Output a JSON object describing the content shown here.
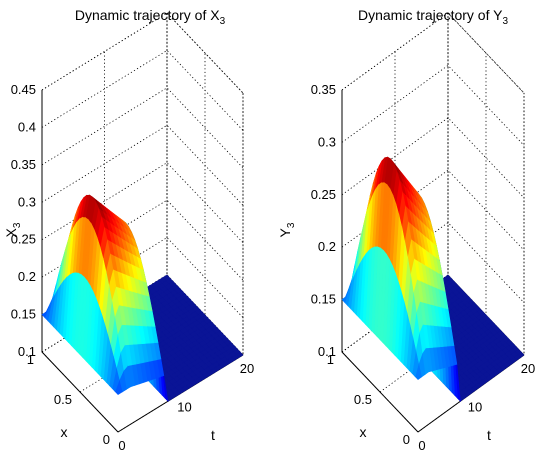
{
  "chart_data": [
    {
      "type": "surface",
      "title": "Dynamic trajectory of X",
      "title_subscript": "3",
      "zlabel": "X",
      "zlabel_subscript": "3",
      "xlabel": "x",
      "tlabel": "t",
      "zticks": [
        "0.1",
        "0.15",
        "0.2",
        "0.25",
        "0.3",
        "0.35",
        "0.4",
        "0.45"
      ],
      "xticks": [
        "0",
        "0.5",
        "1"
      ],
      "tticks": [
        "0",
        "10",
        "20"
      ],
      "zlim": [
        0.1,
        0.45
      ],
      "xlim": [
        0,
        1
      ],
      "tlim": [
        0,
        20
      ],
      "grid": true,
      "colormap": "jet",
      "surface": {
        "z_at_t0_x_boundary": 0.15,
        "z_at_t0_x_mid": 0.15,
        "peak_z": 0.35,
        "peak_t": 2,
        "z_final": 0.1
      }
    },
    {
      "type": "surface",
      "title": "Dynamic trajectory of Y",
      "title_subscript": "3",
      "zlabel": "Y",
      "zlabel_subscript": "3",
      "xlabel": "x",
      "tlabel": "t",
      "zticks": [
        "0.1",
        "0.15",
        "0.2",
        "0.25",
        "0.3",
        "0.35"
      ],
      "xticks": [
        "0",
        "0.5",
        "1"
      ],
      "tticks": [
        "0",
        "10",
        "20"
      ],
      "zlim": [
        0.1,
        0.35
      ],
      "xlim": [
        0,
        1
      ],
      "tlim": [
        0,
        20
      ],
      "grid": true,
      "colormap": "jet",
      "surface": {
        "z_at_t0_x_boundary": 0.15,
        "z_at_t0_x_mid": 0.15,
        "peak_z": 0.315,
        "peak_t": 2,
        "z_final": 0.1
      }
    }
  ]
}
